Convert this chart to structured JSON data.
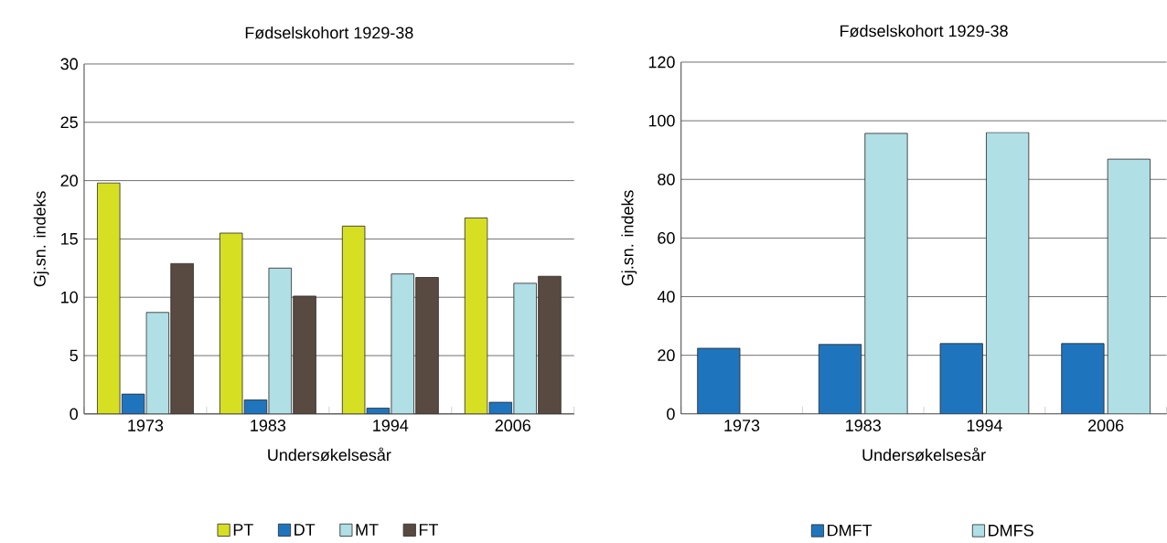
{
  "chart_data": [
    {
      "type": "bar",
      "title": "Fødselskohort 1929-38",
      "xlabel": "Undersøkelsesår",
      "ylabel": "Gj.sn. indeks",
      "categories": [
        "1973",
        "1983",
        "1994",
        "2006"
      ],
      "series": [
        {
          "name": "PT",
          "color": "#d7df23",
          "values": [
            19.8,
            15.5,
            16.1,
            16.8
          ]
        },
        {
          "name": "DT",
          "color": "#1f75bd",
          "values": [
            1.7,
            1.2,
            0.5,
            1.0
          ]
        },
        {
          "name": "MT",
          "color": "#b0dfe5",
          "values": [
            8.7,
            12.5,
            12.0,
            11.2
          ]
        },
        {
          "name": "FT",
          "color": "#594a41",
          "values": [
            12.9,
            10.1,
            11.7,
            11.8
          ]
        }
      ],
      "ylim": [
        0,
        30
      ],
      "yticks": [
        0,
        5,
        10,
        15,
        20,
        25,
        30
      ],
      "grid": "y",
      "legend": "bottom"
    },
    {
      "type": "bar",
      "title": "Fødselskohort 1929-38",
      "xlabel": "Undersøkelsesår",
      "ylabel": "Gj.sn. indeks",
      "categories": [
        "1973",
        "1983",
        "1994",
        "2006"
      ],
      "series": [
        {
          "name": "DMFT",
          "color": "#1f75bd",
          "values": [
            22.4,
            23.7,
            24.0,
            24.0
          ]
        },
        {
          "name": "DMFS",
          "color": "#b0dfe5",
          "values": [
            null,
            95.7,
            96.0,
            86.9
          ]
        }
      ],
      "ylim": [
        0,
        120
      ],
      "yticks": [
        0,
        20,
        40,
        60,
        80,
        100,
        120
      ],
      "grid": "y",
      "legend": "bottom"
    }
  ]
}
